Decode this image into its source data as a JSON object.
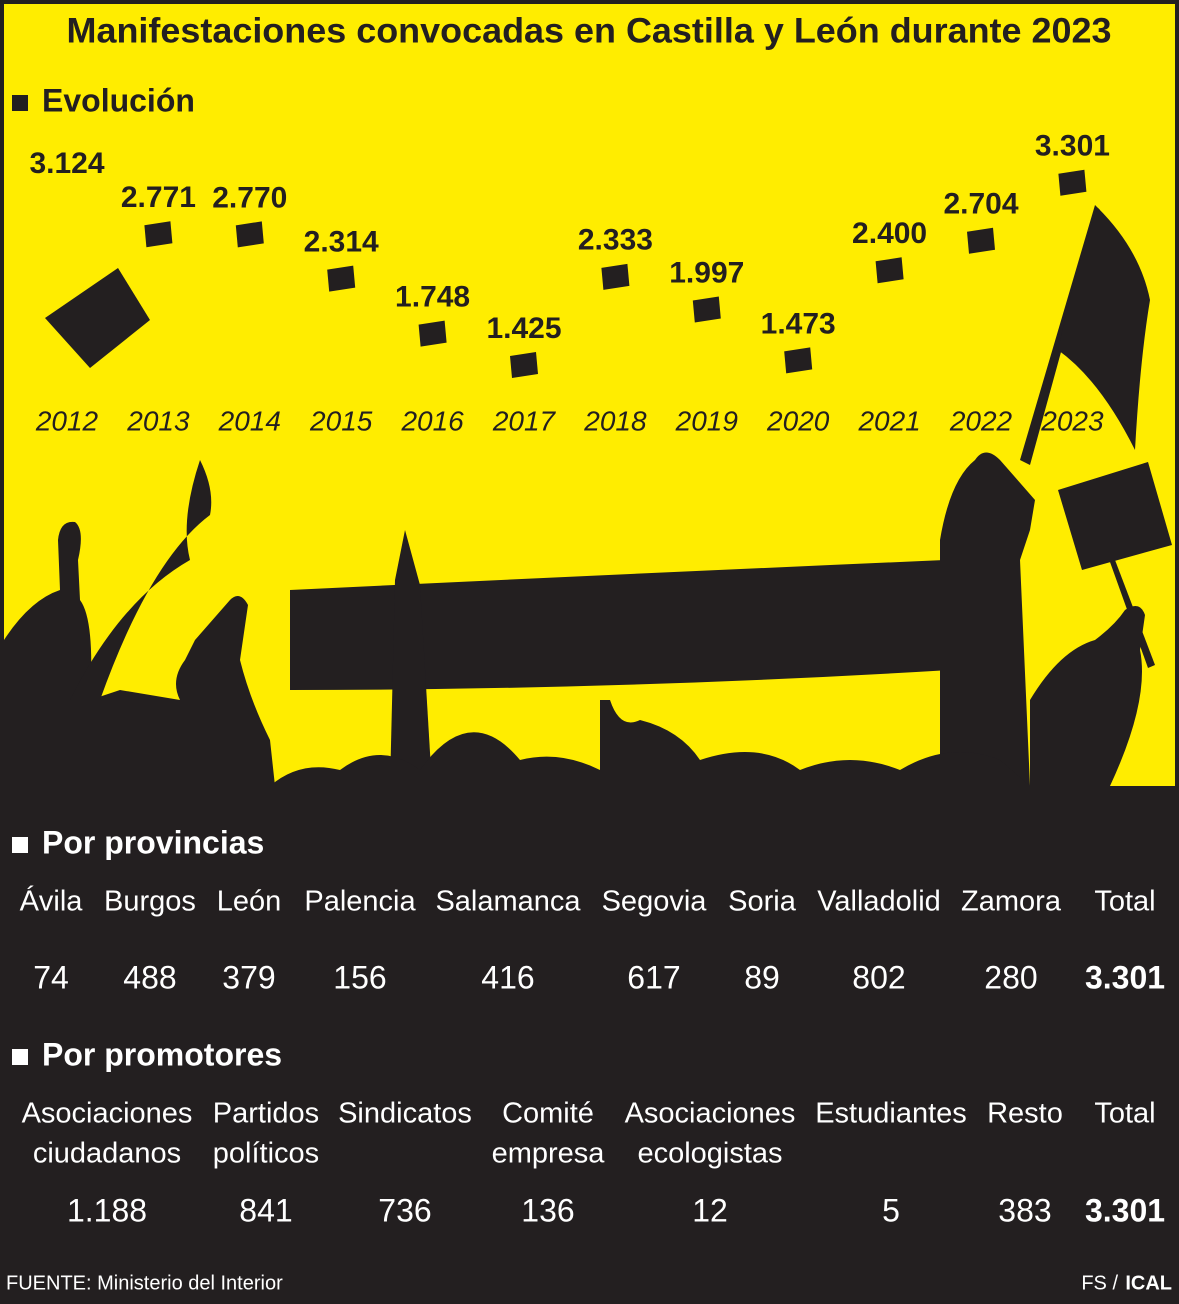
{
  "title": "Manifestaciones convocadas en Castilla y León durante 2023",
  "chart_data": {
    "type": "dot",
    "title": "Evolución",
    "categories": [
      "2012",
      "2013",
      "2014",
      "2015",
      "2016",
      "2017",
      "2018",
      "2019",
      "2020",
      "2021",
      "2022",
      "2023"
    ],
    "values": [
      3124,
      2771,
      2770,
      2314,
      1748,
      1425,
      2333,
      1997,
      1473,
      2400,
      2704,
      3301
    ],
    "value_labels": [
      "3.124",
      "2.771",
      "2.770",
      "2.314",
      "1.748",
      "1.425",
      "2.333",
      "1.997",
      "1.473",
      "2.400",
      "2.704",
      "3.301"
    ],
    "color": "#231f20"
  },
  "provinces": {
    "title": "Por provincias",
    "columns": [
      "Ávila",
      "Burgos",
      "León",
      "Palencia",
      "Salamanca",
      "Segovia",
      "Soria",
      "Valladolid",
      "Zamora",
      "Total"
    ],
    "values": [
      "74",
      "488",
      "379",
      "156",
      "416",
      "617",
      "89",
      "802",
      "280",
      "3.301"
    ]
  },
  "promoters": {
    "title": "Por promotores",
    "columns": [
      [
        "Asociaciones",
        "ciudadanos"
      ],
      [
        "Partidos",
        "políticos"
      ],
      [
        "Sindicatos"
      ],
      [
        "Comité",
        "empresa"
      ],
      [
        "Asociaciones",
        "ecologistas"
      ],
      [
        "Estudiantes"
      ],
      [
        "Resto"
      ],
      [
        "Total"
      ]
    ],
    "values": [
      "1.188",
      "841",
      "736",
      "136",
      "12",
      "5",
      "383",
      "3.301"
    ]
  },
  "source": "FUENTE: Ministerio del Interior",
  "credit": [
    "FS /",
    "ICAL"
  ]
}
